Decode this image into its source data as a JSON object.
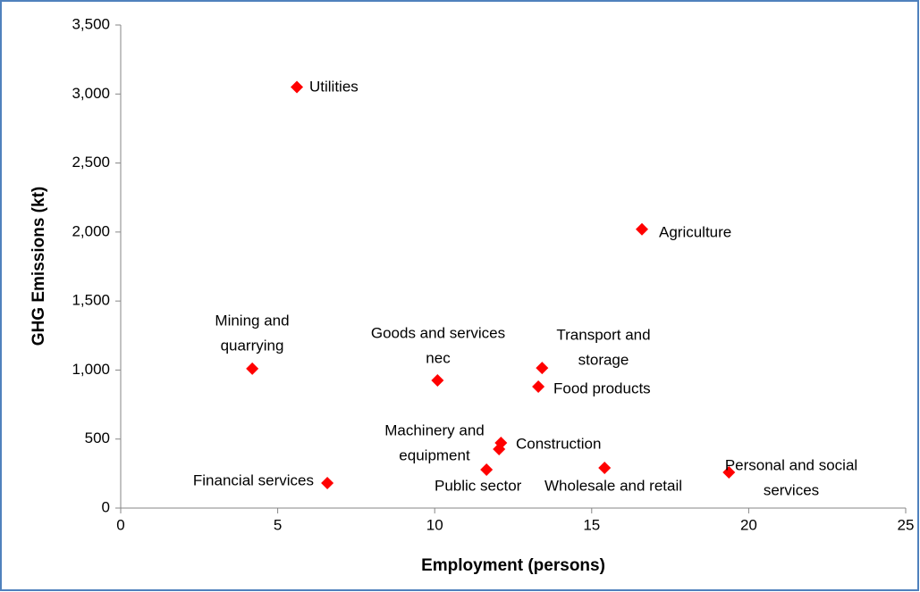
{
  "chart_data": {
    "type": "scatter",
    "x_label": "Employment (persons)",
    "y_label": "GHG Emissions (kt)",
    "color": "#ff0000",
    "grid": false,
    "xlim": [
      0,
      25
    ],
    "xticks": [
      0,
      5,
      10,
      15,
      20,
      25
    ],
    "ylim": [
      0,
      3500
    ],
    "yticks": [
      0,
      {
        "value": 500,
        "label": "500"
      },
      {
        "value": 1000,
        "label": "1,000"
      },
      {
        "value": 1500,
        "label": "1,500"
      },
      {
        "value": 2000,
        "label": "2,000"
      },
      {
        "value": 2500,
        "label": "2,500"
      },
      {
        "value": 3000,
        "label": "3,000"
      },
      {
        "value": 3500,
        "label": "3,500"
      }
    ],
    "labels": [
      [
        "Utilities"
      ],
      [
        "Agriculture"
      ],
      [
        "Mining and",
        "quarrying"
      ],
      [
        "Goods and services",
        "nec"
      ],
      [
        "Transport and",
        "storage"
      ],
      [
        "Food products"
      ],
      [
        "Construction"
      ],
      [
        "Machinery and",
        "equipment"
      ],
      [
        "Public sector"
      ],
      [
        "Wholesale and retail"
      ],
      [
        "Personal and social",
        "services"
      ],
      [
        "Financial services"
      ]
    ],
    "x": [
      5.61,
      16.6,
      4.19,
      10.09,
      13.42,
      13.3,
      12.11,
      12.05,
      11.65,
      15.41,
      19.37,
      6.58
    ],
    "values": [
      3050,
      2020,
      1010,
      925,
      1015,
      880,
      472,
      427,
      278,
      291,
      259,
      181
    ]
  }
}
